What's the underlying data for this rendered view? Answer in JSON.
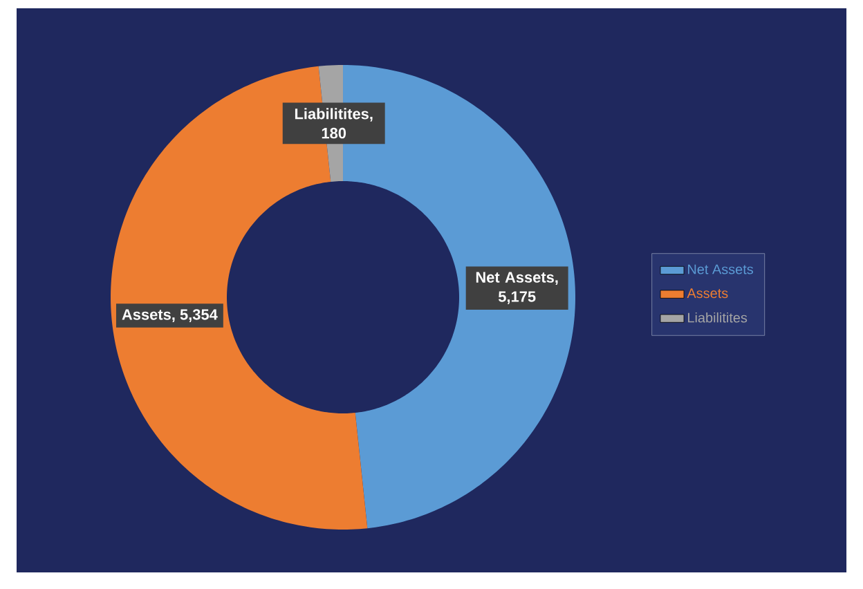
{
  "chart_data": {
    "type": "donut",
    "categories": [
      "Net Assets",
      "Assets",
      "Liabilitites"
    ],
    "values": [
      5175,
      5354,
      180
    ],
    "value_labels": [
      "Net Assets, 5,175",
      "Assets,  5,354",
      "Liabilitites, 180"
    ],
    "colors": [
      "#5b9bd5",
      "#ed7d31",
      "#a5a5a5"
    ],
    "legend": "right"
  }
}
